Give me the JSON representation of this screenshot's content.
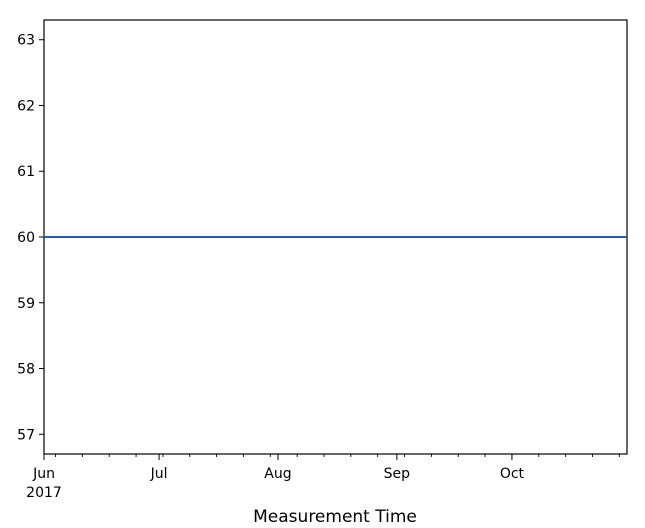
{
  "chart_data": {
    "type": "line",
    "title": "",
    "xlabel": "Measurement Time",
    "ylabel": "",
    "x": [
      "2017-06-01",
      "2017-10-31"
    ],
    "series": [
      {
        "values": [
          60,
          60
        ],
        "color": "#1f5fa8"
      }
    ],
    "xlim": [
      "2017-06-01",
      "2017-10-31"
    ],
    "ylim": [
      56.7,
      63.3
    ],
    "x_ticks": [
      {
        "date": "2017-06-01",
        "label": "Jun",
        "sublabel": "2017"
      },
      {
        "date": "2017-07-01",
        "label": "Jul"
      },
      {
        "date": "2017-08-01",
        "label": "Aug"
      },
      {
        "date": "2017-09-01",
        "label": "Sep"
      },
      {
        "date": "2017-10-01",
        "label": "Oct"
      }
    ],
    "y_ticks": [
      "57",
      "58",
      "59",
      "60",
      "61",
      "62",
      "63"
    ],
    "grid": false,
    "legend": "none"
  }
}
